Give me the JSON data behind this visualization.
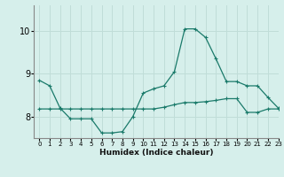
{
  "xlabel": "Humidex (Indice chaleur)",
  "xlim": [
    -0.5,
    23
  ],
  "ylim": [
    7.5,
    10.6
  ],
  "yticks": [
    8,
    9,
    10
  ],
  "xticks": [
    0,
    1,
    2,
    3,
    4,
    5,
    6,
    7,
    8,
    9,
    10,
    11,
    12,
    13,
    14,
    15,
    16,
    17,
    18,
    19,
    20,
    21,
    22,
    23
  ],
  "bg_color": "#d6efeb",
  "grid_color": "#c0ddd8",
  "line_color": "#1a7a6a",
  "line1_x": [
    0,
    1,
    2,
    3,
    4,
    5,
    6,
    7,
    8,
    9,
    10,
    11,
    12,
    13,
    14,
    15,
    16,
    17,
    18,
    19,
    20,
    21,
    22,
    23
  ],
  "line1_y": [
    8.85,
    8.72,
    8.2,
    7.95,
    7.95,
    7.95,
    7.62,
    7.62,
    7.65,
    8.0,
    8.55,
    8.65,
    8.72,
    9.05,
    10.05,
    10.05,
    9.85,
    9.35,
    8.82,
    8.82,
    8.72,
    8.72,
    8.45,
    8.2
  ],
  "line2_x": [
    0,
    1,
    2,
    3,
    4,
    5,
    6,
    7,
    8,
    9,
    10,
    11,
    12,
    13,
    14,
    15,
    16,
    17,
    18,
    19,
    20,
    21,
    22,
    23
  ],
  "line2_y": [
    8.18,
    8.18,
    8.18,
    8.18,
    8.18,
    8.18,
    8.18,
    8.18,
    8.18,
    8.18,
    8.18,
    8.18,
    8.22,
    8.28,
    8.33,
    8.33,
    8.35,
    8.38,
    8.42,
    8.42,
    8.1,
    8.1,
    8.18,
    8.18
  ],
  "xlabel_fontsize": 6.5,
  "xlabel_fontweight": "bold",
  "ytick_fontsize": 7,
  "xtick_fontsize": 5
}
